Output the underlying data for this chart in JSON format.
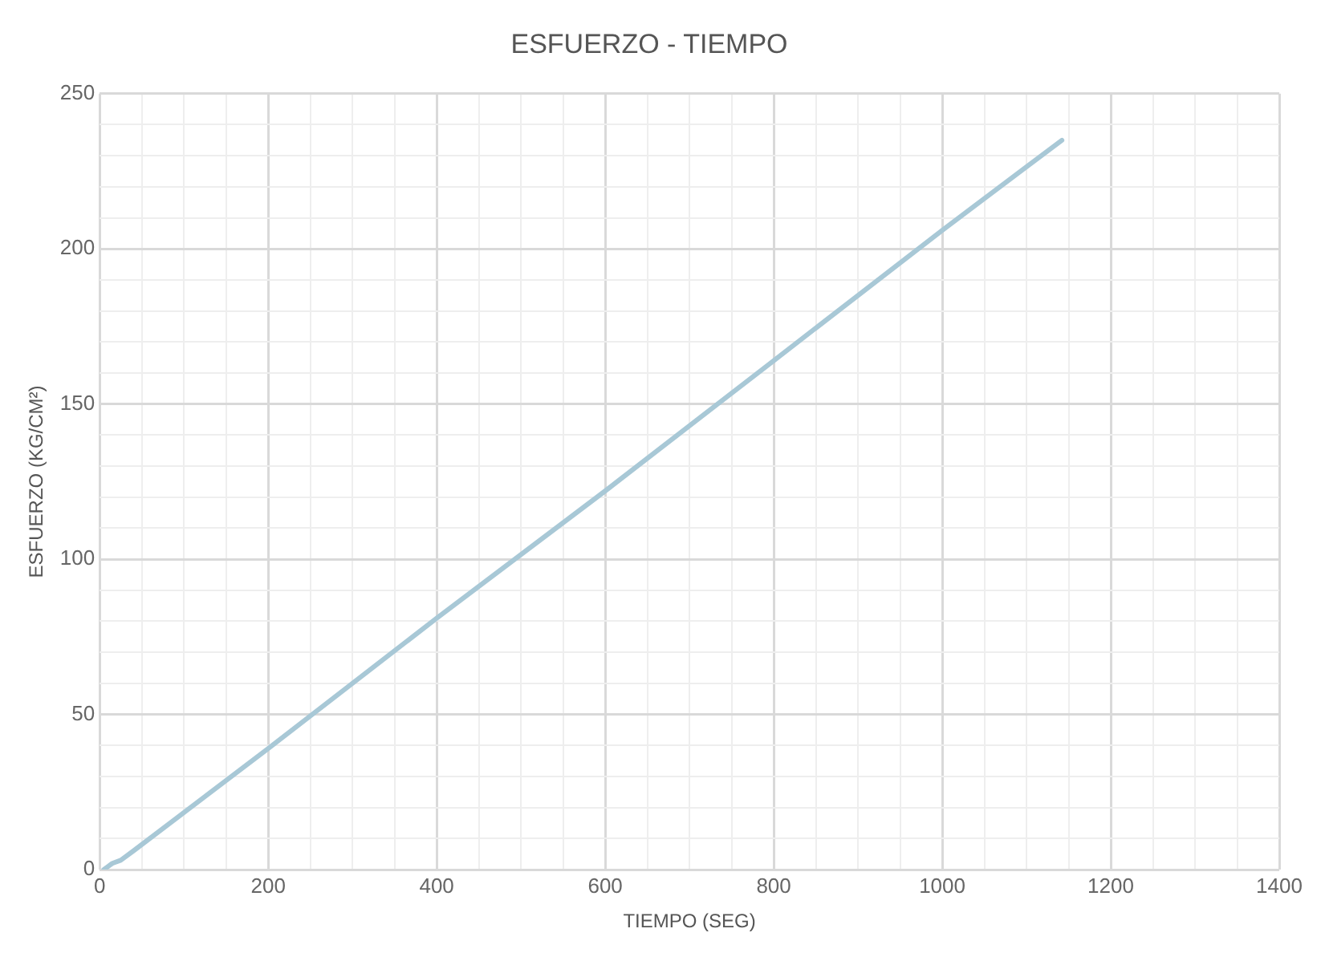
{
  "chart_data": {
    "type": "line",
    "title": "ESFUERZO - TIEMPO",
    "xlabel": "TIEMPO (SEG)",
    "ylabel": "ESFUERZO (KG/CM²)",
    "series": [
      {
        "color": "#a8c8d6",
        "x": [
          5,
          10,
          15,
          25,
          40,
          200,
          400,
          600,
          800,
          1000,
          1142
        ],
        "values": [
          0,
          1,
          2,
          3,
          6,
          39,
          81,
          122,
          164,
          206,
          235
        ]
      }
    ],
    "xlim": [
      0,
      1400
    ],
    "xticks": [
      0,
      {
        "value": 50,
        "label": null
      },
      {
        "value": 100,
        "label": null
      },
      {
        "value": 150,
        "label": null
      },
      200,
      {
        "value": 250,
        "label": null
      },
      {
        "value": 300,
        "label": null
      },
      {
        "value": 350,
        "label": null
      },
      400,
      {
        "value": 450,
        "label": null
      },
      {
        "value": 500,
        "label": null
      },
      {
        "value": 550,
        "label": null
      },
      600,
      {
        "value": 650,
        "label": null
      },
      {
        "value": 700,
        "label": null
      },
      {
        "value": 750,
        "label": null
      },
      800,
      {
        "value": 850,
        "label": null
      },
      {
        "value": 900,
        "label": null
      },
      {
        "value": 950,
        "label": null
      },
      1000,
      {
        "value": 1050,
        "label": null
      },
      {
        "value": 1100,
        "label": null
      },
      {
        "value": 1150,
        "label": null
      },
      1200,
      {
        "value": 1250,
        "label": null
      },
      {
        "value": 1300,
        "label": null
      },
      {
        "value": 1350,
        "label": null
      },
      1400
    ],
    "ylim": [
      0,
      250
    ],
    "yticks": [
      0,
      {
        "value": 10,
        "label": null
      },
      {
        "value": 20,
        "label": null
      },
      {
        "value": 30,
        "label": null
      },
      {
        "value": 40,
        "label": null
      },
      50,
      {
        "value": 60,
        "label": null
      },
      {
        "value": 70,
        "label": null
      },
      {
        "value": 80,
        "label": null
      },
      {
        "value": 90,
        "label": null
      },
      100,
      {
        "value": 110,
        "label": null
      },
      {
        "value": 120,
        "label": null
      },
      {
        "value": 130,
        "label": null
      },
      {
        "value": 140,
        "label": null
      },
      150,
      {
        "value": 160,
        "label": null
      },
      {
        "value": 170,
        "label": null
      },
      {
        "value": 180,
        "label": null
      },
      {
        "value": 190,
        "label": null
      },
      200,
      {
        "value": 210,
        "label": null
      },
      {
        "value": 220,
        "label": null
      },
      {
        "value": 230,
        "label": null
      },
      {
        "value": 240,
        "label": null
      },
      250
    ],
    "grid": true,
    "marker": "none",
    "line_style": "solid"
  }
}
